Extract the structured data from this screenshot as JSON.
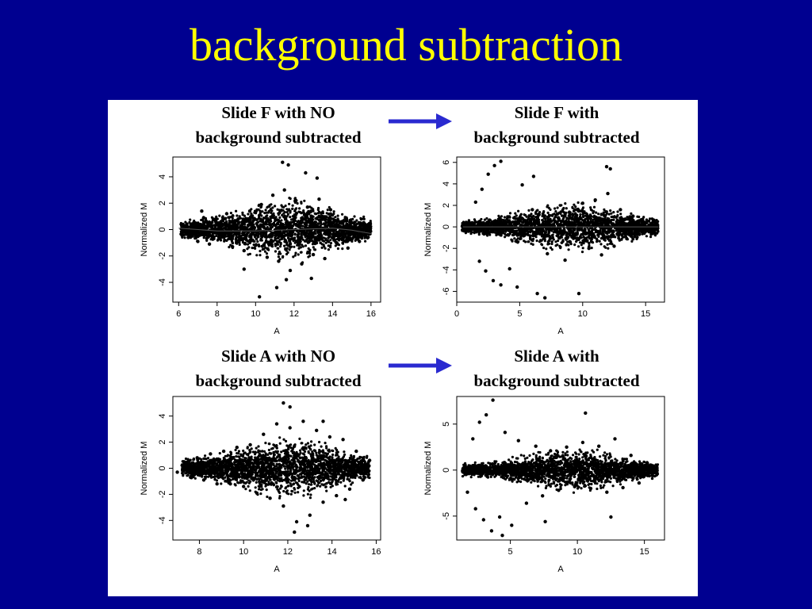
{
  "title": "background subtraction",
  "colors": {
    "background": "#000090",
    "title": "#ffff00",
    "arrow": "#2a2ad0",
    "panel": "#ffffff"
  },
  "captions": [
    {
      "line1": "Slide F with NO",
      "line2": "background subtracted"
    },
    {
      "line1": "Slide F with",
      "line2": "background subtracted"
    },
    {
      "line1": "Slide A with NO",
      "line2": "background subtracted"
    },
    {
      "line1": "Slide A with",
      "line2": "background subtracted"
    }
  ],
  "chart_data": [
    {
      "type": "scatter",
      "id": "slideF_no_bg",
      "xlabel": "A",
      "ylabel": "Normalized M",
      "xlim": [
        5.7,
        16.5
      ],
      "ylim": [
        -5.5,
        5.5
      ],
      "xticks": [
        6,
        8,
        10,
        12,
        14,
        16
      ],
      "yticks": [
        -4,
        -2,
        0,
        2,
        4
      ],
      "points": [
        [
          6.2,
          0.3
        ],
        [
          6.5,
          -0.6
        ],
        [
          6.8,
          0.5
        ],
        [
          7.0,
          -0.9
        ],
        [
          7.3,
          0.9
        ],
        [
          7.6,
          -1.1
        ],
        [
          7.9,
          0.7
        ],
        [
          8.2,
          -0.4
        ],
        [
          8.5,
          1.2
        ],
        [
          8.8,
          -1.3
        ],
        [
          9.1,
          0.8
        ],
        [
          9.4,
          -1.6
        ],
        [
          9.7,
          1.4
        ],
        [
          10.0,
          -1.2
        ],
        [
          10.3,
          1.9
        ],
        [
          10.6,
          -2.1
        ],
        [
          10.9,
          2.6
        ],
        [
          11.2,
          -2.4
        ],
        [
          11.5,
          3.0
        ],
        [
          11.8,
          -3.1
        ],
        [
          12.1,
          2.2
        ],
        [
          12.4,
          -2.6
        ],
        [
          12.7,
          1.7
        ],
        [
          13.0,
          -1.9
        ],
        [
          13.3,
          2.3
        ],
        [
          13.6,
          -2.2
        ],
        [
          13.9,
          1.5
        ],
        [
          14.2,
          -1.0
        ],
        [
          14.5,
          0.6
        ],
        [
          14.8,
          -1.4
        ],
        [
          15.1,
          -0.3
        ],
        [
          15.4,
          -0.9
        ],
        [
          11.4,
          5.1
        ],
        [
          11.7,
          4.9
        ],
        [
          12.6,
          4.3
        ],
        [
          13.2,
          3.9
        ],
        [
          11.1,
          -4.4
        ],
        [
          11.6,
          -3.8
        ],
        [
          10.2,
          -5.1
        ],
        [
          9.4,
          -3.0
        ],
        [
          12.9,
          -3.7
        ],
        [
          7.2,
          1.4
        ]
      ],
      "loess": [
        [
          6.0,
          0.1
        ],
        [
          8.0,
          -0.1
        ],
        [
          10.0,
          -0.1
        ],
        [
          12.0,
          0.0
        ],
        [
          14.0,
          0.1
        ],
        [
          15.0,
          -0.05
        ],
        [
          16.0,
          -0.3
        ]
      ]
    },
    {
      "type": "scatter",
      "id": "slideF_bg",
      "xlabel": "A",
      "ylabel": "Normalized M",
      "xlim": [
        0,
        16.5
      ],
      "ylim": [
        -7,
        6.5
      ],
      "xticks": [
        0,
        5,
        10,
        15
      ],
      "yticks": [
        -6,
        -4,
        -2,
        0,
        2,
        4,
        6
      ],
      "points": [
        [
          0.5,
          0.0
        ],
        [
          1.5,
          2.3
        ],
        [
          2.0,
          3.5
        ],
        [
          2.5,
          4.9
        ],
        [
          3.0,
          5.7
        ],
        [
          3.5,
          6.1
        ],
        [
          1.8,
          -3.2
        ],
        [
          2.3,
          -4.1
        ],
        [
          2.9,
          -5.0
        ],
        [
          3.5,
          -5.4
        ],
        [
          4.2,
          -3.9
        ],
        [
          4.8,
          -5.6
        ],
        [
          5.2,
          3.9
        ],
        [
          6.1,
          4.7
        ],
        [
          6.4,
          -6.2
        ],
        [
          7.0,
          -6.6
        ],
        [
          8.0,
          1.2
        ],
        [
          9.0,
          -1.4
        ],
        [
          10.0,
          2.2
        ],
        [
          10.5,
          -2.0
        ],
        [
          11.0,
          2.5
        ],
        [
          11.5,
          -2.6
        ],
        [
          12.0,
          3.1
        ],
        [
          12.5,
          -1.8
        ],
        [
          13.0,
          1.6
        ],
        [
          13.5,
          -1.1
        ],
        [
          14.0,
          1.0
        ],
        [
          14.5,
          -0.7
        ],
        [
          15.0,
          0.4
        ],
        [
          15.5,
          -0.6
        ],
        [
          11.9,
          5.6
        ],
        [
          12.2,
          5.4
        ],
        [
          9.7,
          -6.2
        ],
        [
          7.2,
          -2.5
        ],
        [
          6.0,
          1.6
        ],
        [
          8.6,
          -3.1
        ]
      ],
      "loess": [
        [
          0.5,
          0.0
        ],
        [
          4.0,
          0.0
        ],
        [
          8.0,
          0.0
        ],
        [
          12.0,
          0.0
        ],
        [
          16.0,
          0.0
        ]
      ]
    },
    {
      "type": "scatter",
      "id": "slideA_no_bg",
      "xlabel": "A",
      "ylabel": "Normalized M",
      "xlim": [
        6.8,
        16.2
      ],
      "ylim": [
        -5.5,
        5.5
      ],
      "xticks": [
        8,
        10,
        12,
        14,
        16
      ],
      "yticks": [
        -4,
        -2,
        0,
        2,
        4
      ],
      "points": [
        [
          7.0,
          -0.3
        ],
        [
          7.3,
          0.5
        ],
        [
          7.6,
          -0.7
        ],
        [
          7.9,
          0.8
        ],
        [
          8.2,
          -0.9
        ],
        [
          8.5,
          1.1
        ],
        [
          8.8,
          -1.2
        ],
        [
          9.1,
          1.3
        ],
        [
          9.4,
          -1.2
        ],
        [
          9.7,
          1.6
        ],
        [
          10.0,
          -1.4
        ],
        [
          10.3,
          1.8
        ],
        [
          10.6,
          -1.9
        ],
        [
          10.9,
          2.6
        ],
        [
          11.2,
          -2.3
        ],
        [
          11.5,
          3.4
        ],
        [
          11.8,
          -2.9
        ],
        [
          12.1,
          3.1
        ],
        [
          12.4,
          -4.1
        ],
        [
          12.7,
          3.6
        ],
        [
          13.0,
          -3.6
        ],
        [
          13.3,
          2.9
        ],
        [
          13.6,
          -2.6
        ],
        [
          13.9,
          2.4
        ],
        [
          14.2,
          -2.1
        ],
        [
          14.5,
          2.2
        ],
        [
          14.8,
          -1.6
        ],
        [
          15.1,
          1.3
        ],
        [
          15.4,
          -0.9
        ],
        [
          15.7,
          0.6
        ],
        [
          11.8,
          5.0
        ],
        [
          12.1,
          4.7
        ],
        [
          12.3,
          -4.9
        ],
        [
          12.9,
          -4.4
        ],
        [
          13.6,
          3.6
        ],
        [
          14.6,
          -2.4
        ]
      ],
      "loess": []
    },
    {
      "type": "scatter",
      "id": "slideA_bg",
      "xlabel": "A",
      "ylabel": "Normalized M",
      "xlim": [
        1.0,
        16.5
      ],
      "ylim": [
        -7.6,
        8.0
      ],
      "xticks": [
        5,
        10,
        15
      ],
      "yticks": [
        -5,
        0,
        5
      ],
      "points": [
        [
          1.8,
          -2.4
        ],
        [
          2.2,
          3.4
        ],
        [
          2.7,
          5.2
        ],
        [
          3.2,
          6.0
        ],
        [
          3.7,
          7.6
        ],
        [
          2.4,
          -4.2
        ],
        [
          3.0,
          -5.4
        ],
        [
          3.6,
          -6.6
        ],
        [
          4.2,
          -5.1
        ],
        [
          4.6,
          4.1
        ],
        [
          5.1,
          -6.0
        ],
        [
          5.6,
          3.2
        ],
        [
          6.2,
          -3.6
        ],
        [
          6.9,
          2.6
        ],
        [
          7.4,
          -2.8
        ],
        [
          8.0,
          2.1
        ],
        [
          8.6,
          -2.2
        ],
        [
          9.2,
          2.5
        ],
        [
          9.8,
          -1.8
        ],
        [
          10.4,
          3.0
        ],
        [
          11.0,
          -2.0
        ],
        [
          11.6,
          2.6
        ],
        [
          12.2,
          -2.4
        ],
        [
          12.8,
          3.4
        ],
        [
          13.4,
          -1.9
        ],
        [
          14.0,
          1.6
        ],
        [
          14.6,
          -1.4
        ],
        [
          15.2,
          0.8
        ],
        [
          15.6,
          -0.6
        ],
        [
          10.6,
          6.2
        ],
        [
          12.5,
          -5.1
        ],
        [
          7.6,
          -5.6
        ],
        [
          4.4,
          -7.1
        ]
      ],
      "loess": []
    }
  ]
}
